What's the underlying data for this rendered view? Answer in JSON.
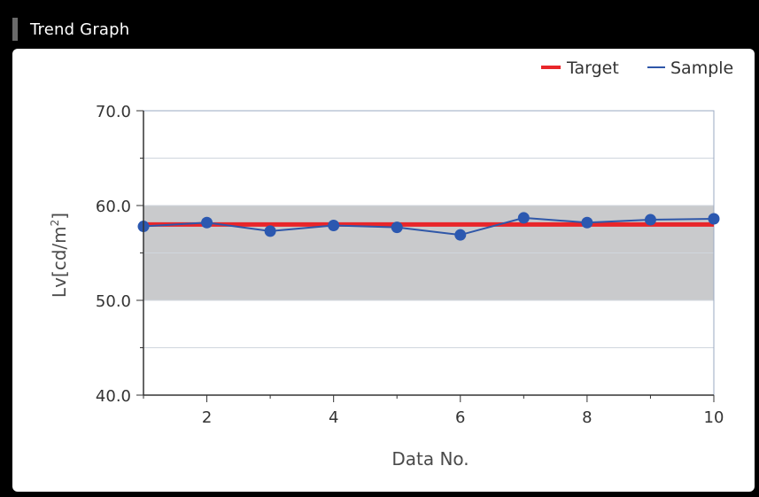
{
  "window": {
    "title": "Trend Graph"
  },
  "colors": {
    "target": "#e8262a",
    "sample": "#2f57a8",
    "sample_marker": "#2b58b0",
    "band": "#c9cacc",
    "axis": "#333333",
    "grid": "#d0d6de",
    "frame_border": "#9aa8c0",
    "tick_text": "#333333"
  },
  "chart_data": {
    "type": "line",
    "title": "",
    "xlabel": "Data No.",
    "ylabel_base": "Lv[cd/m",
    "ylabel_sup": "2",
    "ylabel_close": "]",
    "xlim": [
      1,
      10
    ],
    "ylim": [
      40,
      70
    ],
    "x_ticks": [
      2,
      4,
      6,
      8,
      10
    ],
    "y_ticks": [
      40,
      50,
      60,
      70
    ],
    "y_tick_labels": [
      "40.0",
      "50.0",
      "60.0",
      "70.0"
    ],
    "band": {
      "low": 50,
      "high": 60
    },
    "grid": true,
    "legend_position": "top-right",
    "legend": [
      "Target",
      "Sample"
    ],
    "series": [
      {
        "name": "Target",
        "style": "thick-line",
        "x": [
          1,
          10
        ],
        "values": [
          58,
          58
        ]
      },
      {
        "name": "Sample",
        "style": "line-markers",
        "x": [
          1,
          2,
          3,
          4,
          5,
          6,
          7,
          8,
          9,
          10
        ],
        "values": [
          57.8,
          58.2,
          57.3,
          57.9,
          57.7,
          56.9,
          58.7,
          58.2,
          58.5,
          58.6
        ]
      }
    ]
  }
}
